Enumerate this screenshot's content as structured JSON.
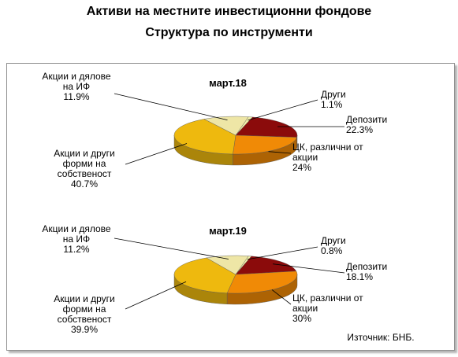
{
  "title": "Активи на местните инвестиционни фондове",
  "subtitle": "Структура по инструменти",
  "source": "Източник: БНБ.",
  "colors": {
    "other": "#f0eea8",
    "deposits": "#8b0b0b",
    "securities": "#f08a06",
    "equity": "#eeb90e",
    "funds": "#eee6a6",
    "frame": "#8f8f8f"
  },
  "chart_data": [
    {
      "type": "pie",
      "title": "март.18",
      "slices": [
        {
          "key": "other",
          "label": [
            "Други",
            "1.1%"
          ],
          "value": 1.1
        },
        {
          "key": "deposits",
          "label": [
            "Депозити",
            "22.3%"
          ],
          "value": 22.3
        },
        {
          "key": "securities",
          "label": [
            "ЦК, различни от",
            "акции",
            "24%"
          ],
          "value": 24.0
        },
        {
          "key": "equity",
          "label": [
            "Акции и други",
            "форми на",
            "собственост",
            "40.7%"
          ],
          "value": 40.7
        },
        {
          "key": "funds",
          "label": [
            "Акции и дялове",
            "на ИФ",
            "11.9%"
          ],
          "value": 11.9
        }
      ]
    },
    {
      "type": "pie",
      "title": "март.19",
      "slices": [
        {
          "key": "other",
          "label": [
            "Други",
            "0.8%"
          ],
          "value": 0.8
        },
        {
          "key": "deposits",
          "label": [
            "Депозити",
            "18.1%"
          ],
          "value": 18.1
        },
        {
          "key": "securities",
          "label": [
            "ЦК, различни от",
            "акции",
            "30%"
          ],
          "value": 30.0
        },
        {
          "key": "equity",
          "label": [
            "Акции и други",
            "форми на",
            "собственост",
            "39.9%"
          ],
          "value": 39.9
        },
        {
          "key": "funds",
          "label": [
            "Акции и дялове",
            "на ИФ",
            "11.2%"
          ],
          "value": 11.2
        }
      ]
    }
  ]
}
